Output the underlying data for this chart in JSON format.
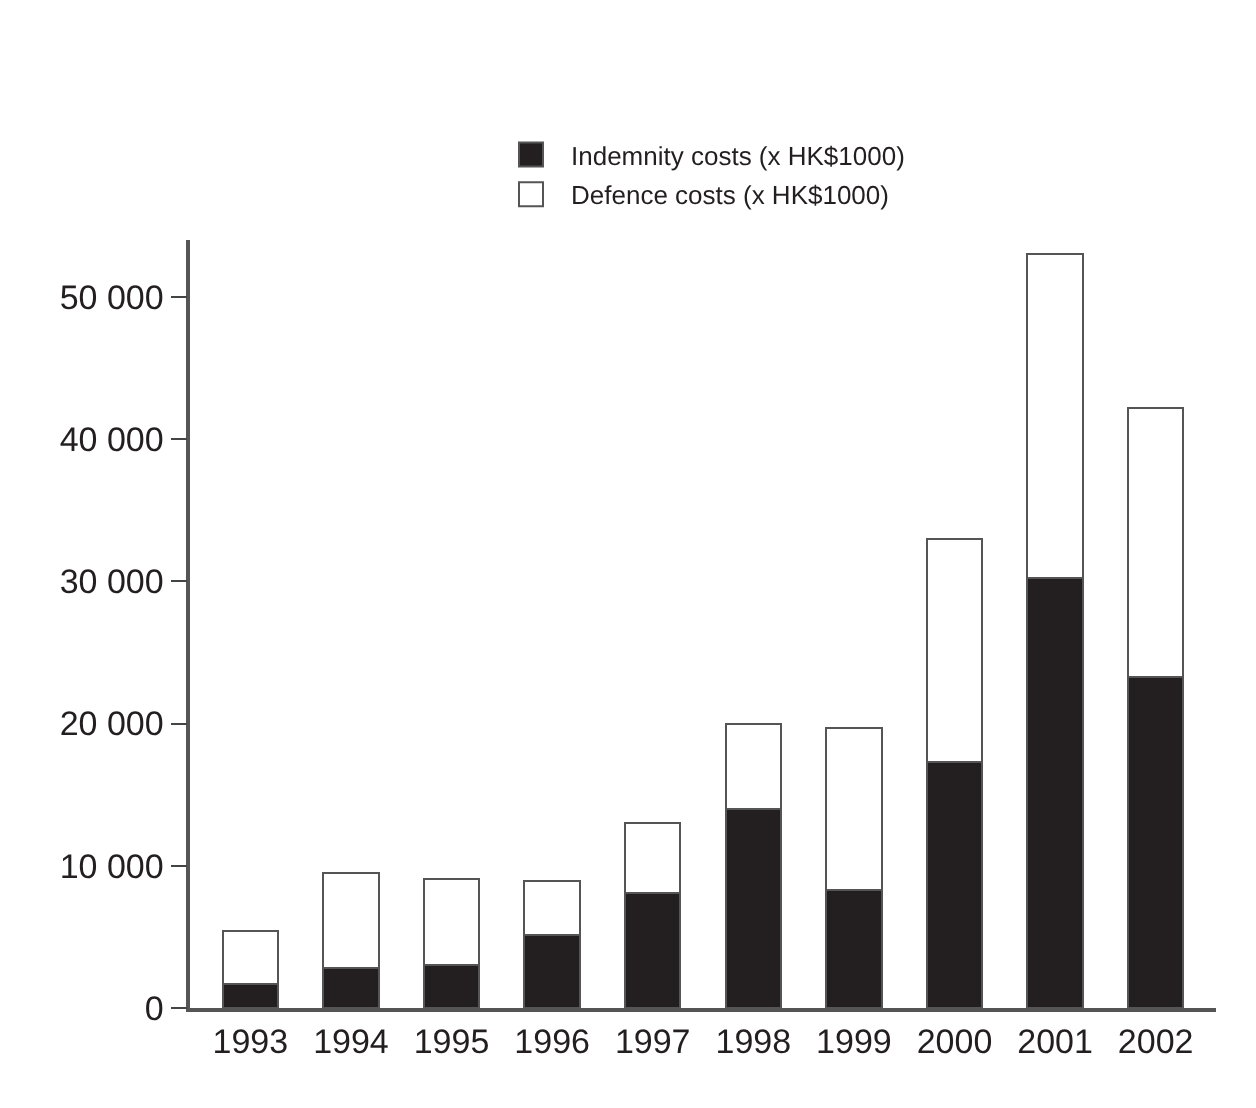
{
  "chart_data": {
    "type": "bar",
    "stacked": true,
    "categories": [
      "1993",
      "1994",
      "1995",
      "1996",
      "1997",
      "1998",
      "1999",
      "2000",
      "2001",
      "2002"
    ],
    "series": [
      {
        "name": "Indemnity costs (x HK$1000)",
        "color": "#231f20",
        "values": [
          1700,
          2800,
          3000,
          5100,
          8100,
          14000,
          8300,
          17300,
          30200,
          23300
        ]
      },
      {
        "name": "Defence costs (x HK$1000)",
        "color": "#ffffff",
        "values": [
          3700,
          6700,
          6100,
          3800,
          4900,
          6000,
          11400,
          15700,
          22800,
          18900
        ]
      }
    ],
    "ylim": [
      0,
      54000
    ],
    "yticks": [
      0,
      {
        "value": 10000,
        "label": "10 000"
      },
      {
        "value": 20000,
        "label": "20 000"
      },
      {
        "value": 30000,
        "label": "30 000"
      },
      {
        "value": 40000,
        "label": "40 000"
      },
      {
        "value": 50000,
        "label": "50 000"
      }
    ],
    "legend": "top"
  }
}
